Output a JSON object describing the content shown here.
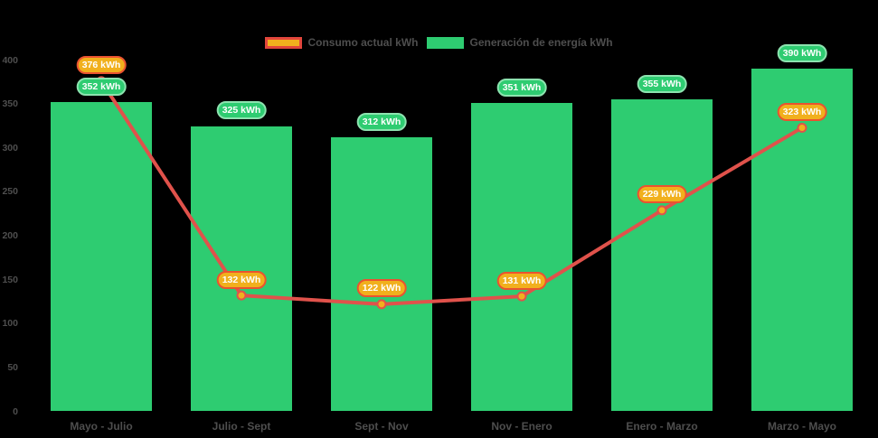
{
  "background_color": "#000000",
  "chart_data": {
    "type": "bar",
    "subtype": "bar-with-line-overlay",
    "categories": [
      "Mayo - Julio",
      "Julio - Sept",
      "Sept - Nov",
      "Nov - Enero",
      "Enero - Marzo",
      "Marzo - Mayo"
    ],
    "series": [
      {
        "name": "Consumo actual kWh",
        "type": "line",
        "values": [
          376,
          132,
          122,
          131,
          229,
          323
        ],
        "color": "#e0524b",
        "point_fill": "#f1b01d",
        "label_bg": "#f1b01d",
        "label_border": "#ea5330",
        "label_text_color": "#ffffff",
        "swatch_fill": "#f1b01d",
        "swatch_border": "#e2463c"
      },
      {
        "name": "Generación de energía kWh",
        "type": "bar",
        "values": [
          352,
          325,
          312,
          351,
          355,
          390
        ],
        "color": "#2ecc71",
        "label_bg": "#2ecc71",
        "label_border": "#8ce3af",
        "label_text_color": "#ffffff",
        "swatch_fill": "#2ecc71",
        "swatch_border": "#2ecc71"
      }
    ],
    "value_suffix": " kWh",
    "title": "",
    "xlabel": "",
    "ylabel": "",
    "ylim": [
      0,
      400
    ],
    "yticks": [
      0,
      50,
      100,
      150,
      200,
      250,
      300,
      350,
      400
    ],
    "grid": false,
    "legend_position": "top",
    "axis_text_color": "#4e4e4e",
    "legend_text_color": "#4e4e4e"
  }
}
